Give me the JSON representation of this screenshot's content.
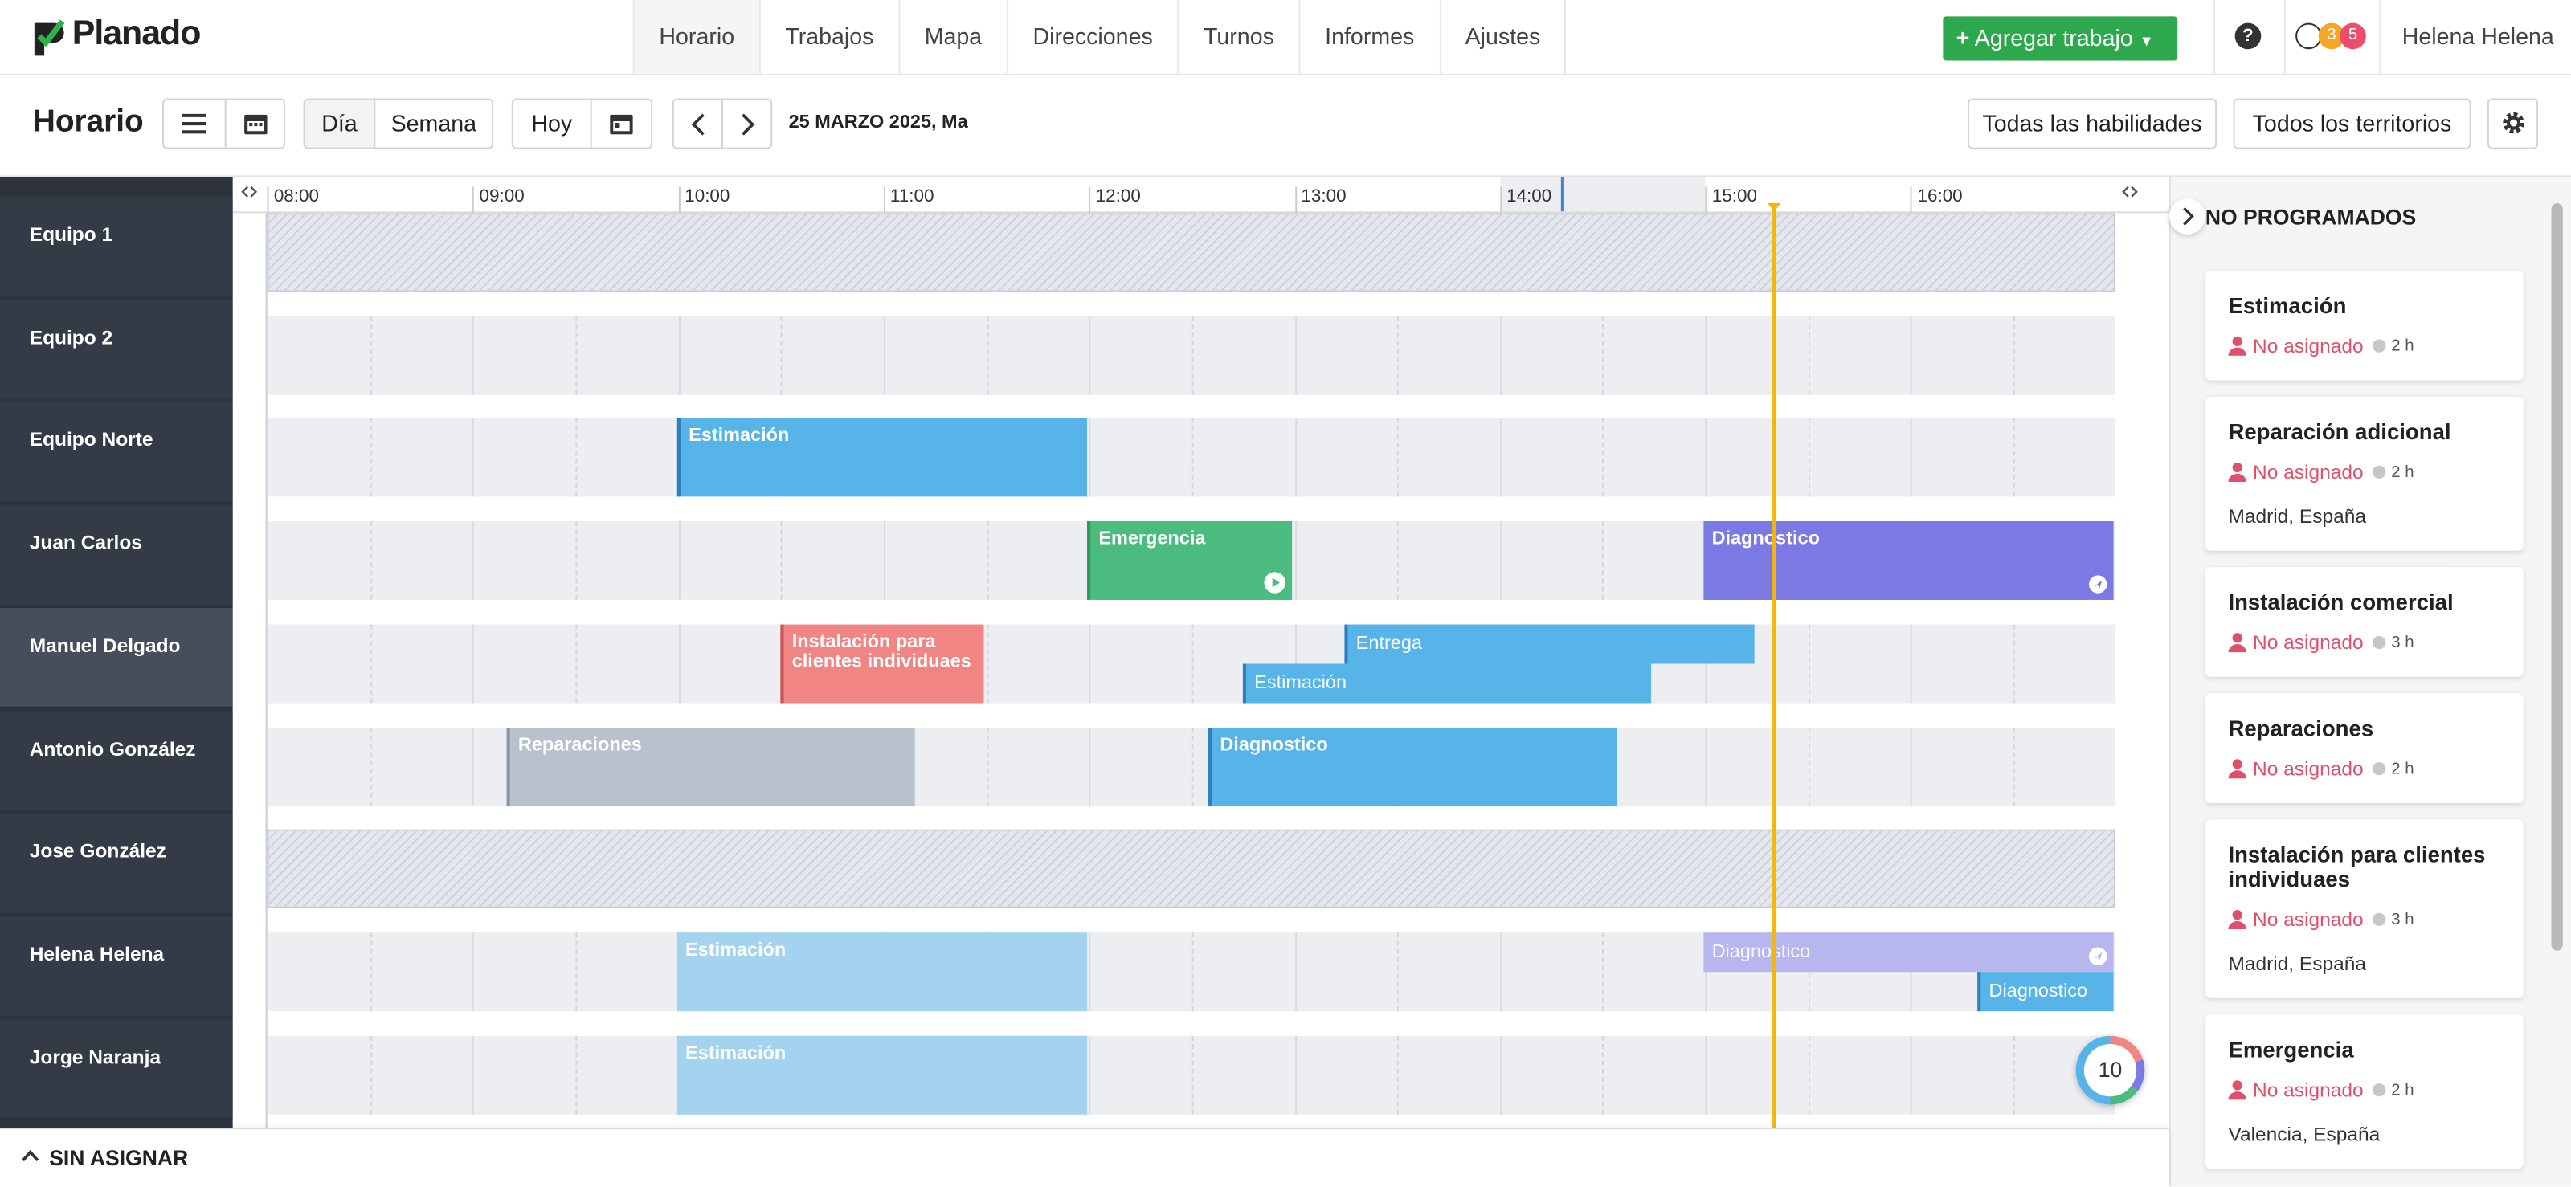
{
  "nav": {
    "logo": "Planado",
    "menu": [
      "Horario",
      "Trabajos",
      "Mapa",
      "Direcciones",
      "Turnos",
      "Informes",
      "Ajustes"
    ],
    "add_button": "Agregar trabajo",
    "help": "?",
    "badges": [
      "3",
      "5"
    ],
    "user": "Helena Helena"
  },
  "toolbar": {
    "title": "Horario",
    "views": [
      "Día",
      "Semana"
    ],
    "today": "Hoy",
    "date": "25 MARZO 2025, Ma",
    "filters": [
      "Todas las habilidades",
      "Todos los territorios"
    ]
  },
  "timeline": {
    "hours": [
      "08:00",
      "09:00",
      "10:00",
      "11:00",
      "12:00",
      "13:00",
      "14:00",
      "15:00",
      "16:00"
    ],
    "rows": [
      {
        "name": "Equipo 1",
        "jobs": []
      },
      {
        "name": "Equipo 2",
        "jobs": []
      },
      {
        "name": "Equipo Norte",
        "jobs": [
          {
            "label": "Estimación"
          }
        ]
      },
      {
        "name": "Juan Carlos",
        "jobs": [
          {
            "label": "Emergencia"
          },
          {
            "label": "Diagnostico"
          }
        ]
      },
      {
        "name": "Manuel Delgado",
        "jobs": [
          {
            "label": "Instalación para clientes individuaes"
          },
          {
            "label": "Entrega"
          },
          {
            "label": "Estimación"
          }
        ]
      },
      {
        "name": "Antonio González",
        "jobs": [
          {
            "label": "Reparaciones"
          },
          {
            "label": "Diagnostico"
          }
        ]
      },
      {
        "name": "Jose González",
        "jobs": []
      },
      {
        "name": "Helena Helena",
        "jobs": [
          {
            "label": "Estimación"
          },
          {
            "label": "Diagnostico"
          },
          {
            "label": "Diagnostico"
          }
        ]
      },
      {
        "name": "Jorge Naranja",
        "jobs": [
          {
            "label": "Estimación"
          }
        ]
      }
    ]
  },
  "unscheduled": {
    "title": "NO PROGRAMADOS",
    "cards": [
      {
        "title": "Estimación",
        "assignee": "No asignado",
        "duration": "2 h"
      },
      {
        "title": "Reparación adicional",
        "assignee": "No asignado",
        "duration": "2 h",
        "location": "Madrid, España"
      },
      {
        "title": "Instalación comercial",
        "assignee": "No asignado",
        "duration": "3 h"
      },
      {
        "title": "Reparaciones",
        "assignee": "No asignado",
        "duration": "2 h"
      },
      {
        "title": "Instalación para clientes individuaes",
        "assignee": "No asignado",
        "duration": "3 h",
        "location": "Madrid, España"
      },
      {
        "title": "Emergencia",
        "assignee": "No asignado",
        "duration": "2 h",
        "location": "Valencia, España"
      }
    ]
  },
  "unassigned_bar": "SIN ASIGNAR",
  "counter": "10"
}
